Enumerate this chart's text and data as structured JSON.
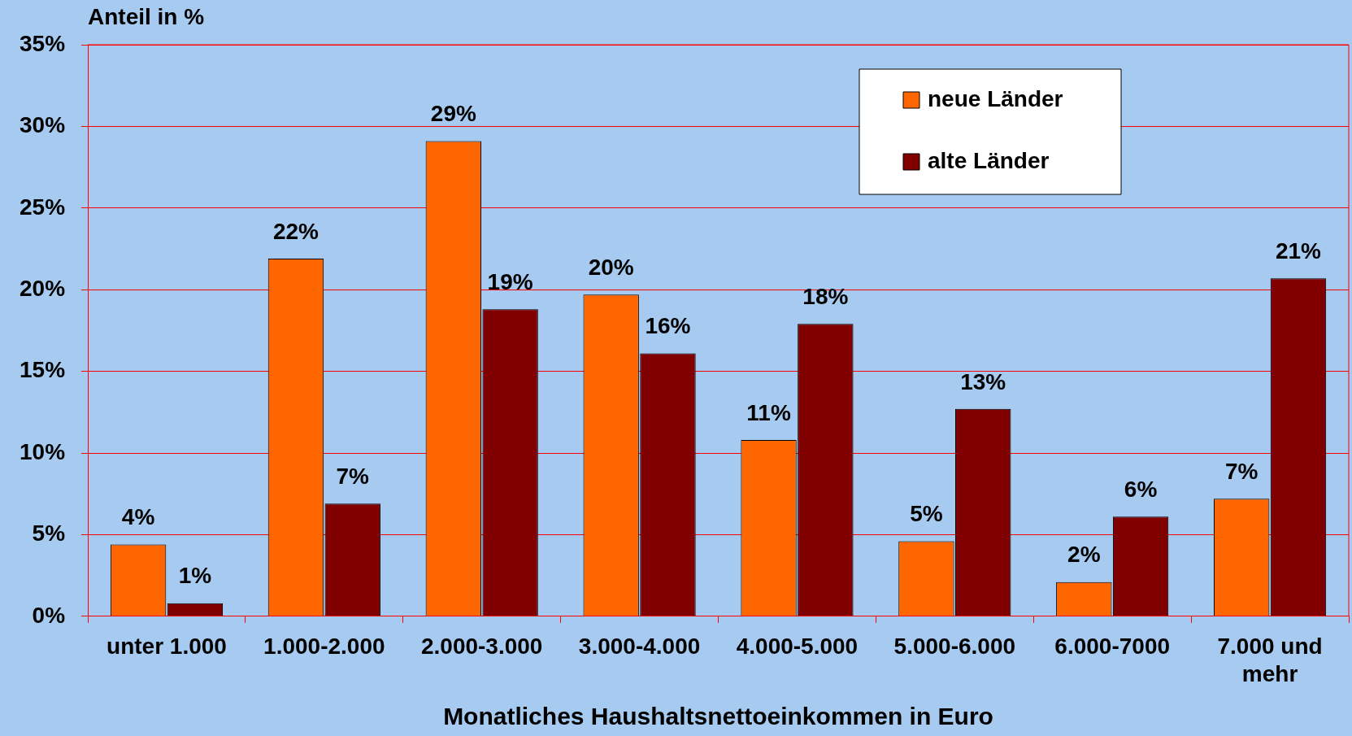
{
  "chart_data": {
    "type": "bar",
    "xlabel": "Monatliches Haushaltsnettoeinkommen in Euro",
    "ylabel": "Anteil in %",
    "categories": [
      "unter 1.000",
      "1.000-2.000",
      "2.000-3.000",
      "3.000-4.000",
      "4.000-5.000",
      "5.000-6.000",
      "6.000-7000",
      "7.000 und mehr"
    ],
    "series": [
      {
        "name": "neue Länder",
        "color": "#ff6600",
        "values": [
          4.4,
          21.9,
          29.1,
          19.7,
          10.8,
          4.6,
          2.1,
          7.2
        ],
        "value_labels": [
          "4%",
          "22%",
          "29%",
          "20%",
          "11%",
          "5%",
          "2%",
          "7%"
        ]
      },
      {
        "name": "alte Länder",
        "color": "#800000",
        "values": [
          0.8,
          6.9,
          18.8,
          16.1,
          17.9,
          12.7,
          6.1,
          20.7
        ],
        "value_labels": [
          "1%",
          "7%",
          "19%",
          "16%",
          "18%",
          "13%",
          "6%",
          "21%"
        ]
      }
    ],
    "ylim": [
      0,
      35
    ],
    "yticks": [
      {
        "value": 0,
        "label": "0%"
      },
      {
        "value": 5,
        "label": "5%"
      },
      {
        "value": 10,
        "label": "10%"
      },
      {
        "value": 15,
        "label": "15%"
      },
      {
        "value": 20,
        "label": "20%"
      },
      {
        "value": 25,
        "label": "25%"
      },
      {
        "value": 30,
        "label": "30%"
      },
      {
        "value": 35,
        "label": "35%"
      }
    ],
    "grid": "y",
    "legend": "top right"
  }
}
